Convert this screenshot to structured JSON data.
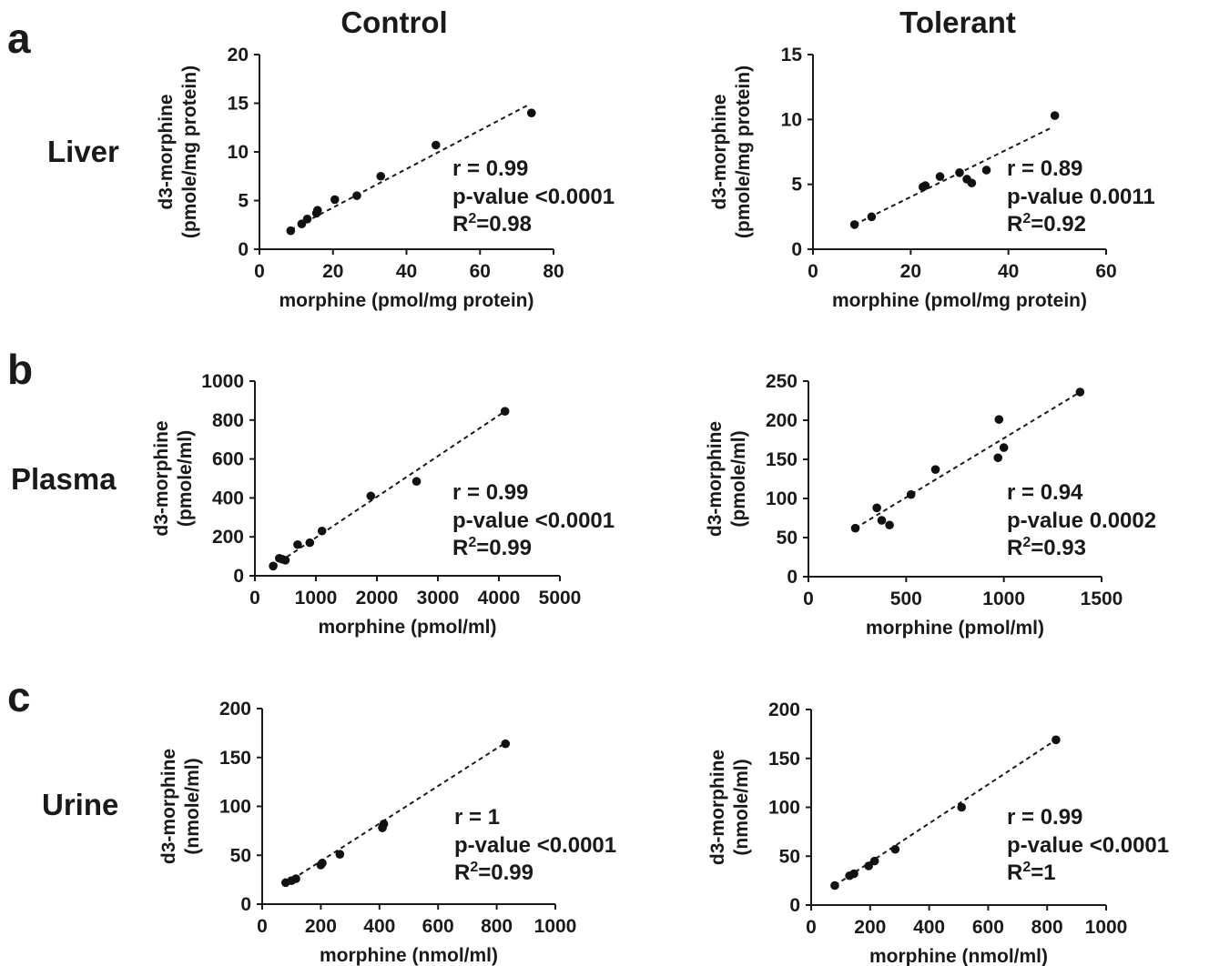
{
  "headers": {
    "control": "Control",
    "tolerant": "Tolerant"
  },
  "rows": [
    {
      "panel_letter": "a",
      "label": "Liver"
    },
    {
      "panel_letter": "b",
      "label": "Plasma"
    },
    {
      "panel_letter": "c",
      "label": "Urine"
    }
  ],
  "chart_data": [
    {
      "type": "scatter",
      "panel": "a",
      "group": "Control",
      "tissue": "Liver",
      "xlabel": "morphine (pmol/mg protein)",
      "ylabel": [
        "d3-morphine",
        "(pmole/mg protein)"
      ],
      "xlim": [
        0,
        80
      ],
      "ylim": [
        0,
        20
      ],
      "xticks": [
        0,
        20,
        40,
        60,
        80
      ],
      "yticks": [
        0,
        5,
        10,
        15,
        20
      ],
      "points": [
        [
          8.5,
          1.9
        ],
        [
          11.5,
          2.6
        ],
        [
          13,
          3.1
        ],
        [
          15.5,
          3.7
        ],
        [
          15.8,
          4.0
        ],
        [
          20.5,
          5.1
        ],
        [
          26.5,
          5.5
        ],
        [
          33,
          7.5
        ],
        [
          48,
          10.7
        ],
        [
          74,
          14
        ]
      ],
      "fit": [
        [
          8.5,
          2.0
        ],
        [
          73,
          14.8
        ]
      ],
      "stats": [
        "r = 0.99",
        "p-value <0.0001",
        "R2=0.98"
      ]
    },
    {
      "type": "scatter",
      "panel": "a",
      "group": "Tolerant",
      "tissue": "Liver",
      "xlabel": "morphine (pmol/mg protein)",
      "ylabel": [
        "d3-morphine",
        "(pmole/mg protein)"
      ],
      "xlim": [
        0,
        60
      ],
      "ylim": [
        0,
        15
      ],
      "xticks": [
        0,
        20,
        40,
        60
      ],
      "yticks": [
        0,
        5,
        10,
        15
      ],
      "points": [
        [
          8.5,
          1.9
        ],
        [
          12,
          2.5
        ],
        [
          22.5,
          4.8
        ],
        [
          23,
          4.9
        ],
        [
          26,
          5.6
        ],
        [
          30,
          5.9
        ],
        [
          31.5,
          5.4
        ],
        [
          32.5,
          5.1
        ],
        [
          35.5,
          6.1
        ],
        [
          49.5,
          10.3
        ]
      ],
      "fit": [
        [
          8.5,
          1.9
        ],
        [
          49,
          9.4
        ]
      ],
      "stats": [
        "r = 0.89",
        "p-value 0.0011",
        "R2=0.92"
      ]
    },
    {
      "type": "scatter",
      "panel": "b",
      "group": "Control",
      "tissue": "Plasma",
      "xlabel": "morphine (pmol/ml)",
      "ylabel": [
        "d3-morphine",
        "(pmole/ml)"
      ],
      "xlim": [
        0,
        5000
      ],
      "ylim": [
        0,
        1000
      ],
      "xticks": [
        0,
        1000,
        2000,
        3000,
        4000,
        5000
      ],
      "yticks": [
        0,
        200,
        400,
        600,
        800,
        1000
      ],
      "points": [
        [
          300,
          50
        ],
        [
          400,
          90
        ],
        [
          450,
          85
        ],
        [
          500,
          80
        ],
        [
          700,
          160
        ],
        [
          900,
          170
        ],
        [
          1100,
          230
        ],
        [
          1900,
          410
        ],
        [
          2650,
          485
        ],
        [
          4100,
          845
        ]
      ],
      "fit": [
        [
          300,
          50
        ],
        [
          4100,
          845
        ]
      ],
      "stats": [
        "r = 0.99",
        "p-value <0.0001",
        "R2=0.99"
      ]
    },
    {
      "type": "scatter",
      "panel": "b",
      "group": "Tolerant",
      "tissue": "Plasma",
      "xlabel": "morphine (pmol/ml)",
      "ylabel": [
        "d3-morphine",
        "(pmole/ml)"
      ],
      "xlim": [
        0,
        1500
      ],
      "ylim": [
        0,
        250
      ],
      "xticks": [
        0,
        500,
        1000,
        1500
      ],
      "yticks": [
        0,
        50,
        100,
        150,
        200,
        250
      ],
      "points": [
        [
          240,
          62
        ],
        [
          350,
          88
        ],
        [
          375,
          72
        ],
        [
          415,
          66
        ],
        [
          525,
          105
        ],
        [
          650,
          137
        ],
        [
          970,
          152
        ],
        [
          975,
          201
        ],
        [
          1000,
          165
        ],
        [
          1390,
          236
        ]
      ],
      "fit": [
        [
          240,
          62
        ],
        [
          1390,
          236
        ]
      ],
      "stats": [
        "r = 0.94",
        "p-value 0.0002",
        "R2=0.93"
      ]
    },
    {
      "type": "scatter",
      "panel": "c",
      "group": "Control",
      "tissue": "Urine",
      "xlabel": "morphine (nmol/ml)",
      "ylabel": [
        "d3-morphine",
        "(nmole/ml)"
      ],
      "xlim": [
        0,
        1000
      ],
      "ylim": [
        0,
        200
      ],
      "xticks": [
        0,
        200,
        400,
        600,
        800,
        1000
      ],
      "yticks": [
        0,
        50,
        100,
        150,
        200
      ],
      "points": [
        [
          80,
          22
        ],
        [
          100,
          24
        ],
        [
          115,
          26
        ],
        [
          200,
          40
        ],
        [
          205,
          42
        ],
        [
          265,
          51
        ],
        [
          410,
          78
        ],
        [
          415,
          82
        ],
        [
          830,
          164
        ]
      ],
      "fit": [
        [
          80,
          21
        ],
        [
          830,
          165
        ]
      ],
      "stats": [
        "r = 1",
        "p-value <0.0001",
        "R2=0.99"
      ]
    },
    {
      "type": "scatter",
      "panel": "c",
      "group": "Tolerant",
      "tissue": "Urine",
      "xlabel": "morphine (nmol/ml)",
      "ylabel": [
        "d3-morphine",
        "(nmole/ml)"
      ],
      "xlim": [
        0,
        1000
      ],
      "ylim": [
        0,
        200
      ],
      "xticks": [
        0,
        200,
        400,
        600,
        800,
        1000
      ],
      "yticks": [
        0,
        50,
        100,
        150,
        200
      ],
      "points": [
        [
          80,
          20
        ],
        [
          130,
          30
        ],
        [
          145,
          32
        ],
        [
          195,
          40
        ],
        [
          215,
          45
        ],
        [
          285,
          57
        ],
        [
          510,
          100
        ],
        [
          830,
          169
        ]
      ],
      "fit": [
        [
          80,
          20
        ],
        [
          830,
          169
        ]
      ],
      "stats": [
        "r = 0.99",
        "p-value <0.0001",
        "R2=1"
      ]
    }
  ]
}
